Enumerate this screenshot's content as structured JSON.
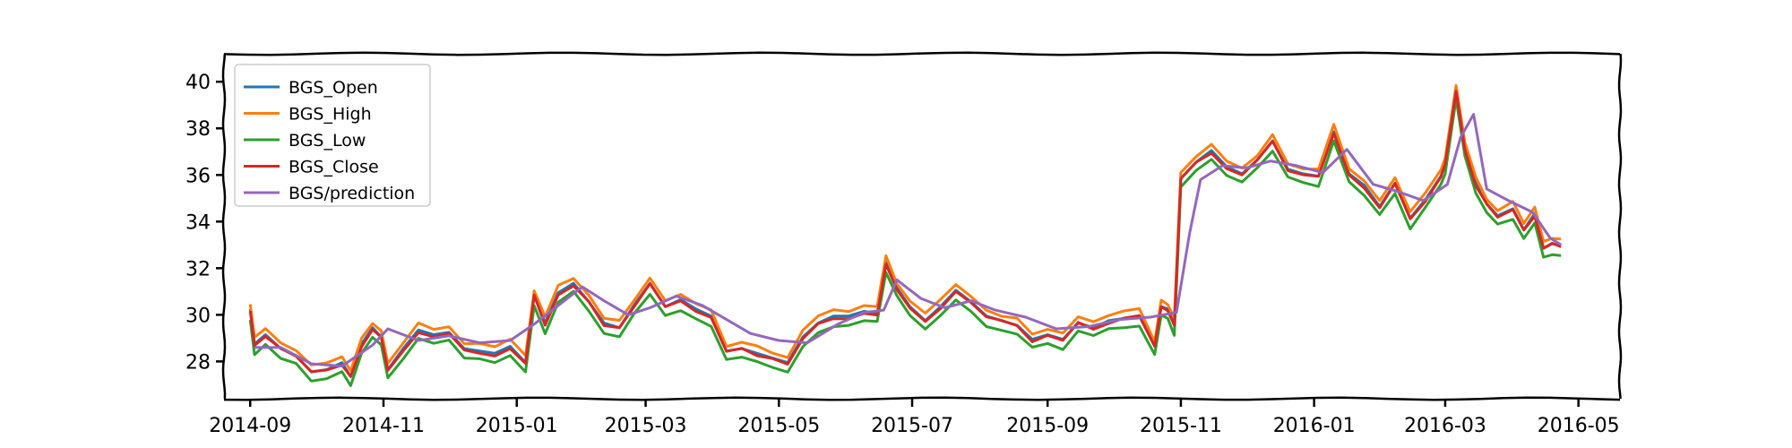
{
  "chart_data": {
    "type": "line",
    "title": "",
    "xlabel": "",
    "ylabel": "",
    "ylim": [
      26.4,
      41.2
    ],
    "xlim": [
      "2014-08-20",
      "2016-05-20"
    ],
    "yticks": [
      28,
      30,
      32,
      34,
      36,
      38,
      40
    ],
    "ytick_labels": [
      "28",
      "30",
      "32",
      "34",
      "36",
      "38",
      "40"
    ],
    "xticks": [
      "2014-09-01",
      "2014-11-01",
      "2015-01-01",
      "2015-03-01",
      "2015-05-01",
      "2015-07-01",
      "2015-09-01",
      "2015-11-01",
      "2016-01-01",
      "2016-03-01",
      "2016-05-01"
    ],
    "xtick_labels": [
      "2014-09",
      "2014-11",
      "2015-01",
      "2015-03",
      "2015-05",
      "2015-07",
      "2015-09",
      "2015-11",
      "2016-01",
      "2016-03",
      "2016-05"
    ],
    "grid": false,
    "legend_position": "upper-left",
    "series": [
      {
        "name": "BGS_Open",
        "color": "#1f77b4",
        "offset": 0.05
      },
      {
        "name": "BGS_High",
        "color": "#ff7f0e",
        "offset": 0.3
      },
      {
        "name": "BGS_Low",
        "color": "#2ca02c",
        "offset": -0.35
      },
      {
        "name": "BGS_Close",
        "color": "#d62728",
        "offset": 0.0
      },
      {
        "name": "BGS/prediction",
        "color": "#9467bd",
        "offset": null
      }
    ],
    "close_points": [
      [
        "2014-09-01",
        30.2
      ],
      [
        "2014-09-03",
        28.7
      ],
      [
        "2014-09-08",
        29.1
      ],
      [
        "2014-09-15",
        28.5
      ],
      [
        "2014-09-22",
        28.2
      ],
      [
        "2014-09-29",
        27.5
      ],
      [
        "2014-10-06",
        27.6
      ],
      [
        "2014-10-13",
        27.9
      ],
      [
        "2014-10-17",
        27.3
      ],
      [
        "2014-10-22",
        28.7
      ],
      [
        "2014-10-27",
        29.4
      ],
      [
        "2014-10-31",
        29.0
      ],
      [
        "2014-11-03",
        27.6
      ],
      [
        "2014-11-10",
        28.5
      ],
      [
        "2014-11-17",
        29.3
      ],
      [
        "2014-11-24",
        29.1
      ],
      [
        "2014-12-01",
        29.2
      ],
      [
        "2014-12-08",
        28.5
      ],
      [
        "2014-12-15",
        28.4
      ],
      [
        "2014-12-22",
        28.3
      ],
      [
        "2014-12-29",
        28.6
      ],
      [
        "2015-01-05",
        27.9
      ],
      [
        "2015-01-09",
        30.8
      ],
      [
        "2015-01-14",
        29.6
      ],
      [
        "2015-01-20",
        30.9
      ],
      [
        "2015-01-27",
        31.3
      ],
      [
        "2015-02-03",
        30.5
      ],
      [
        "2015-02-10",
        29.6
      ],
      [
        "2015-02-17",
        29.4
      ],
      [
        "2015-02-24",
        30.4
      ],
      [
        "2015-03-03",
        31.3
      ],
      [
        "2015-03-10",
        30.3
      ],
      [
        "2015-03-17",
        30.6
      ],
      [
        "2015-03-24",
        30.2
      ],
      [
        "2015-03-31",
        29.9
      ],
      [
        "2015-04-07",
        28.4
      ],
      [
        "2015-04-14",
        28.5
      ],
      [
        "2015-04-21",
        28.3
      ],
      [
        "2015-04-28",
        28.1
      ],
      [
        "2015-05-05",
        27.9
      ],
      [
        "2015-05-12",
        29.0
      ],
      [
        "2015-05-19",
        29.6
      ],
      [
        "2015-05-26",
        29.9
      ],
      [
        "2015-06-02",
        29.9
      ],
      [
        "2015-06-09",
        30.1
      ],
      [
        "2015-06-15",
        30.0
      ],
      [
        "2015-06-19",
        32.2
      ],
      [
        "2015-06-24",
        31.1
      ],
      [
        "2015-06-30",
        30.3
      ],
      [
        "2015-07-07",
        29.7
      ],
      [
        "2015-07-14",
        30.3
      ],
      [
        "2015-07-21",
        31.0
      ],
      [
        "2015-07-28",
        30.5
      ],
      [
        "2015-08-04",
        29.9
      ],
      [
        "2015-08-11",
        29.7
      ],
      [
        "2015-08-18",
        29.5
      ],
      [
        "2015-08-25",
        28.9
      ],
      [
        "2015-09-01",
        29.1
      ],
      [
        "2015-09-08",
        28.9
      ],
      [
        "2015-09-15",
        29.6
      ],
      [
        "2015-09-22",
        29.4
      ],
      [
        "2015-09-29",
        29.7
      ],
      [
        "2015-10-06",
        29.8
      ],
      [
        "2015-10-13",
        29.9
      ],
      [
        "2015-10-20",
        28.6
      ],
      [
        "2015-10-23",
        30.3
      ],
      [
        "2015-10-26",
        30.2
      ],
      [
        "2015-10-29",
        29.5
      ],
      [
        "2015-11-01",
        35.8
      ],
      [
        "2015-11-08",
        36.5
      ],
      [
        "2015-11-15",
        37.0
      ],
      [
        "2015-11-22",
        36.3
      ],
      [
        "2015-11-29",
        36.0
      ],
      [
        "2015-12-06",
        36.6
      ],
      [
        "2015-12-13",
        37.4
      ],
      [
        "2015-12-20",
        36.2
      ],
      [
        "2015-12-27",
        36.0
      ],
      [
        "2016-01-03",
        35.9
      ],
      [
        "2016-01-10",
        37.8
      ],
      [
        "2016-01-17",
        36.0
      ],
      [
        "2016-01-24",
        35.5
      ],
      [
        "2016-01-31",
        34.6
      ],
      [
        "2016-02-07",
        35.6
      ],
      [
        "2016-02-14",
        34.1
      ],
      [
        "2016-02-21",
        34.9
      ],
      [
        "2016-02-28",
        35.9
      ],
      [
        "2016-03-01",
        36.4
      ],
      [
        "2016-03-06",
        39.6
      ],
      [
        "2016-03-10",
        37.1
      ],
      [
        "2016-03-15",
        35.6
      ],
      [
        "2016-03-20",
        34.7
      ],
      [
        "2016-03-25",
        34.2
      ],
      [
        "2016-04-01",
        34.5
      ],
      [
        "2016-04-06",
        33.6
      ],
      [
        "2016-04-11",
        34.3
      ],
      [
        "2016-04-15",
        32.8
      ],
      [
        "2016-04-19",
        33.0
      ],
      [
        "2016-04-23",
        32.9
      ]
    ],
    "prediction_points": [
      [
        "2014-09-03",
        28.6
      ],
      [
        "2014-09-15",
        28.6
      ],
      [
        "2014-09-29",
        27.9
      ],
      [
        "2014-10-13",
        27.8
      ],
      [
        "2014-10-27",
        28.7
      ],
      [
        "2014-11-03",
        29.4
      ],
      [
        "2014-11-17",
        28.9
      ],
      [
        "2014-12-01",
        29.1
      ],
      [
        "2014-12-15",
        28.8
      ],
      [
        "2014-12-29",
        28.9
      ],
      [
        "2015-01-09",
        29.6
      ],
      [
        "2015-01-20",
        30.4
      ],
      [
        "2015-01-31",
        31.2
      ],
      [
        "2015-02-10",
        30.6
      ],
      [
        "2015-02-21",
        30.0
      ],
      [
        "2015-03-03",
        30.3
      ],
      [
        "2015-03-15",
        30.8
      ],
      [
        "2015-03-27",
        30.4
      ],
      [
        "2015-04-07",
        29.8
      ],
      [
        "2015-04-18",
        29.2
      ],
      [
        "2015-05-01",
        28.9
      ],
      [
        "2015-05-14",
        28.8
      ],
      [
        "2015-05-28",
        29.6
      ],
      [
        "2015-06-09",
        30.1
      ],
      [
        "2015-06-18",
        30.2
      ],
      [
        "2015-06-24",
        31.5
      ],
      [
        "2015-07-05",
        30.7
      ],
      [
        "2015-07-16",
        30.3
      ],
      [
        "2015-07-28",
        30.6
      ],
      [
        "2015-08-08",
        30.2
      ],
      [
        "2015-08-22",
        29.9
      ],
      [
        "2015-09-05",
        29.4
      ],
      [
        "2015-09-20",
        29.5
      ],
      [
        "2015-10-04",
        29.8
      ],
      [
        "2015-10-18",
        29.9
      ],
      [
        "2015-10-30",
        30.1
      ],
      [
        "2015-11-05",
        33.5
      ],
      [
        "2015-11-10",
        35.8
      ],
      [
        "2015-11-20",
        36.4
      ],
      [
        "2015-12-01",
        36.3
      ],
      [
        "2015-12-12",
        36.6
      ],
      [
        "2015-12-24",
        36.4
      ],
      [
        "2016-01-05",
        36.1
      ],
      [
        "2016-01-16",
        37.1
      ],
      [
        "2016-01-28",
        35.6
      ],
      [
        "2016-02-08",
        35.3
      ],
      [
        "2016-02-20",
        34.9
      ],
      [
        "2016-03-02",
        35.6
      ],
      [
        "2016-03-08",
        37.6
      ],
      [
        "2016-03-14",
        38.6
      ],
      [
        "2016-03-20",
        35.4
      ],
      [
        "2016-03-30",
        34.9
      ],
      [
        "2016-04-10",
        34.4
      ],
      [
        "2016-04-18",
        33.3
      ],
      [
        "2016-04-23",
        33.0
      ]
    ]
  }
}
